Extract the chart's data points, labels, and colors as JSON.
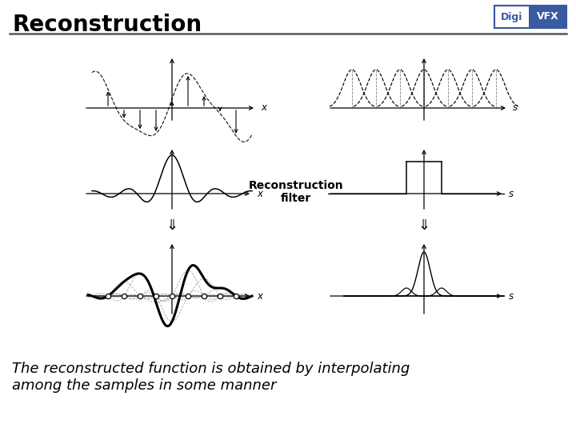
{
  "title": "Reconstruction",
  "subtitle_italic": "The reconstructed function is obtained by interpolating\namong the samples in some manner",
  "bg_color": "#ffffff",
  "title_fontsize": 20,
  "caption_fontsize": 13,
  "recon_filter_label": "Reconstruction\nfilter",
  "line_color": "#000000",
  "gray_color": "#888888",
  "logo_left_color": "#ffffff",
  "logo_right_color": "#3a5aa0",
  "logo_border_color": "#3a5aa0",
  "separator_color": "#555555"
}
